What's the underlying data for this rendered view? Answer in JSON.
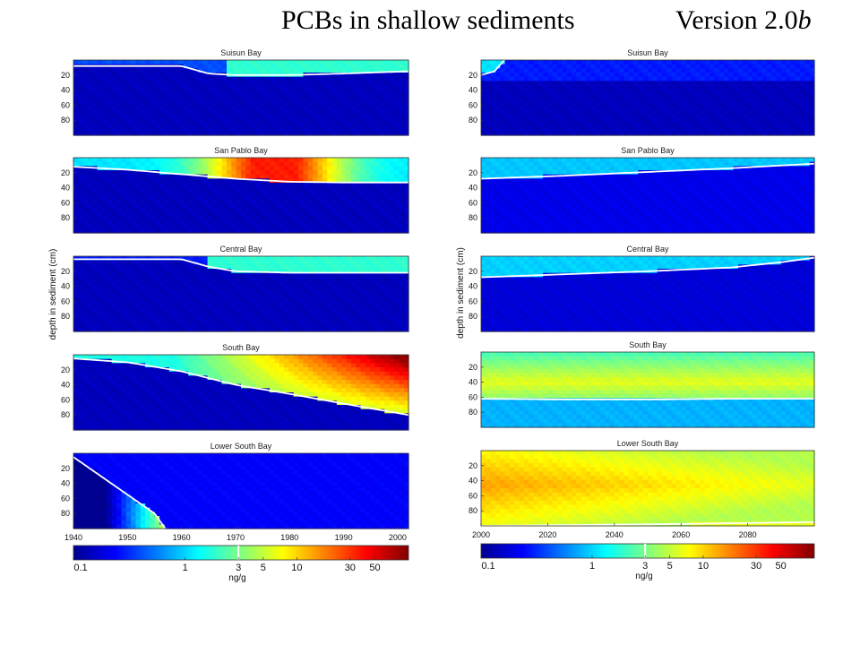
{
  "header": {
    "title": "PCBs in shallow sediments",
    "version_prefix": "Version 2.0",
    "version_suffix": "b"
  },
  "chart_data": [
    {
      "type": "heatmap",
      "column": "left",
      "ylabel": "depth in sediment (cm)",
      "x_ticks": [
        "1940",
        "1950",
        "1960",
        "1970",
        "1980",
        "1990",
        "2000"
      ],
      "xlim": [
        1940,
        2002
      ],
      "y_ticks": [
        "20",
        "40",
        "60",
        "80"
      ],
      "ylim": [
        0,
        100
      ],
      "grid": false,
      "panels": [
        {
          "title": "Suisun Bay",
          "boundary_year": [
            1940,
            1950,
            1960,
            1965,
            1970,
            1980,
            1990,
            2002
          ],
          "boundary_depth": [
            8,
            8,
            8,
            18,
            20,
            20,
            18,
            15
          ]
        },
        {
          "title": "San Pablo Bay",
          "boundary_year": [
            1940,
            1950,
            1960,
            1970,
            1980,
            1990,
            2002
          ],
          "boundary_depth": [
            12,
            16,
            22,
            28,
            32,
            33,
            33
          ]
        },
        {
          "title": "Central Bay",
          "boundary_year": [
            1940,
            1950,
            1960,
            1965,
            1970,
            1980,
            1990,
            2002
          ],
          "boundary_depth": [
            4,
            4,
            4,
            14,
            20,
            22,
            22,
            22
          ]
        },
        {
          "title": "South Bay",
          "boundary_year": [
            1940,
            1950,
            1960,
            1970,
            1980,
            1990,
            2002
          ],
          "boundary_depth": [
            5,
            10,
            22,
            40,
            52,
            65,
            80
          ]
        },
        {
          "title": "Lower South Bay",
          "boundary_year": [
            1940,
            1945,
            1950,
            1955,
            1957
          ],
          "boundary_depth": [
            5,
            30,
            55,
            80,
            100
          ]
        }
      ],
      "colorbar": {
        "label": "ng/g",
        "ticks": [
          "0.1",
          "1",
          "3",
          "5",
          "10",
          "30",
          "50"
        ],
        "tick_values": [
          0.1,
          1,
          3,
          5,
          10,
          30,
          50
        ],
        "range": [
          0.1,
          100
        ],
        "scale": "log",
        "contour_value": 3
      }
    },
    {
      "type": "heatmap",
      "column": "right",
      "ylabel": "depth in sediment (cm)",
      "x_ticks": [
        "2000",
        "2020",
        "2040",
        "2060",
        "2080"
      ],
      "xlim": [
        2000,
        2100
      ],
      "y_ticks": [
        "20",
        "40",
        "60",
        "80"
      ],
      "ylim": [
        0,
        100
      ],
      "grid": false,
      "panels": [
        {
          "title": "Suisun Bay",
          "boundary_year": [
            2000,
            2004,
            2007
          ],
          "boundary_depth": [
            20,
            15,
            0
          ]
        },
        {
          "title": "San Pablo Bay",
          "boundary_year": [
            2000,
            2025,
            2050,
            2075,
            2100
          ],
          "boundary_depth": [
            28,
            24,
            19,
            14,
            8
          ]
        },
        {
          "title": "Central Bay",
          "boundary_year": [
            2000,
            2025,
            2050,
            2075,
            2090,
            2100
          ],
          "boundary_depth": [
            28,
            24,
            20,
            15,
            8,
            2
          ]
        },
        {
          "title": "South Bay",
          "boundary_year": [
            2000,
            2025,
            2050,
            2075,
            2100
          ],
          "boundary_depth": [
            62,
            63,
            63,
            62,
            62
          ]
        },
        {
          "title": "Lower South Bay",
          "boundary_year": [
            2000,
            2050,
            2100
          ],
          "boundary_depth": [
            100,
            98,
            95
          ]
        }
      ],
      "colorbar": {
        "label": "ng/g",
        "ticks": [
          "0.1",
          "1",
          "3",
          "5",
          "10",
          "30",
          "50"
        ],
        "tick_values": [
          0.1,
          1,
          3,
          5,
          10,
          30,
          50
        ],
        "range": [
          0.1,
          100
        ],
        "scale": "log",
        "contour_value": 3
      }
    }
  ],
  "colors": {
    "colormap": [
      "#00008f",
      "#0000ff",
      "#0080ff",
      "#00ffff",
      "#80ff80",
      "#ffff00",
      "#ff8000",
      "#ff0000",
      "#800000"
    ],
    "contour": "#ffffff"
  }
}
